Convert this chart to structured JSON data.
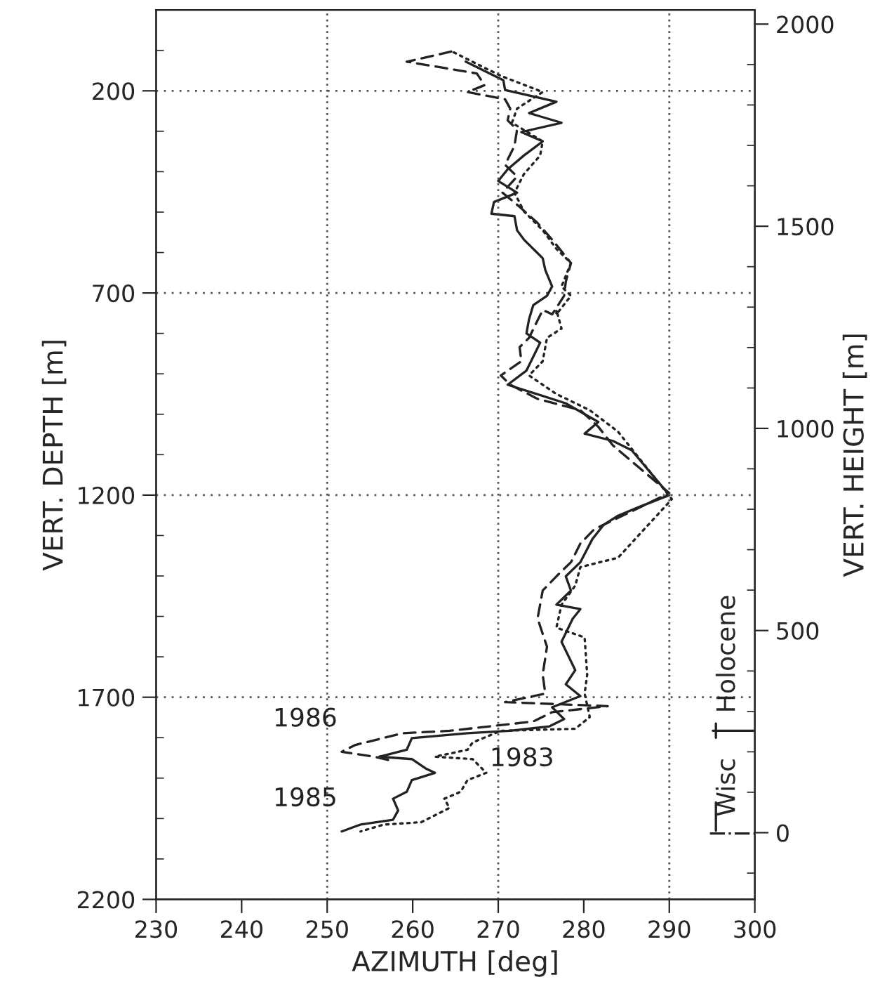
{
  "chart_data": {
    "type": "line",
    "xlabel": "AZIMUTH [deg]",
    "ylabel": "VERT. DEPTH [m]",
    "y2label": "VERT. HEIGHT [m]",
    "xlim": [
      230,
      300
    ],
    "xticks": [
      230,
      240,
      250,
      260,
      270,
      280,
      290,
      300
    ],
    "ylim": [
      2200,
      0
    ],
    "yticks": [
      200,
      700,
      1200,
      1700,
      2200
    ],
    "y2lim": [
      -165,
      2035
    ],
    "y2ticks": [
      0,
      500,
      1000,
      1500,
      2000
    ],
    "grid": "y",
    "legend": false,
    "marker": "none",
    "ref_lines": [
      {
        "axis": "x",
        "value": 250,
        "line_style": "dotted",
        "color": "#555555"
      },
      {
        "axis": "x",
        "value": 270,
        "line_style": "dotted",
        "color": "#555555"
      },
      {
        "axis": "x",
        "value": 290,
        "line_style": "dotted",
        "color": "#555555"
      }
    ],
    "series": [
      {
        "name": "1985",
        "color": "#222222",
        "line_style": "solid",
        "x": [
          266.2,
          270.6,
          270.8,
          276.8,
          273.6,
          277.4,
          272.7,
          275.2,
          273.0,
          271.1,
          270.0,
          272.2,
          269.5,
          269.2,
          271.9,
          272.2,
          273.0,
          275.2,
          275.5,
          276.3,
          275.7,
          274.1,
          273.6,
          273.3,
          274.9,
          273.3,
          271.1,
          277.9,
          281.7,
          280.1,
          283.4,
          285.6,
          290.0,
          286.4,
          284.0,
          282.3,
          281.0,
          279.6,
          277.9,
          278.5,
          276.8,
          279.6,
          278.7,
          277.4,
          279.0,
          277.9,
          279.6,
          276.3,
          277.7,
          276.0,
          271.4,
          266.4,
          259.9,
          259.3,
          256.1,
          259.9,
          261.5,
          262.6,
          259.9,
          259.3,
          257.7,
          258.3,
          257.7,
          253.9,
          251.7
        ],
        "values": [
          128,
          174,
          198,
          227,
          255,
          279,
          302,
          325,
          360,
          394,
          423,
          452,
          475,
          504,
          510,
          545,
          568,
          614,
          643,
          684,
          707,
          730,
          765,
          800,
          823,
          892,
          927,
          973,
          1019,
          1048,
          1066,
          1089,
          1200,
          1230,
          1251,
          1274,
          1309,
          1366,
          1401,
          1436,
          1471,
          1482,
          1506,
          1563,
          1633,
          1668,
          1697,
          1725,
          1754,
          1772,
          1783,
          1789,
          1801,
          1830,
          1847,
          1853,
          1876,
          1887,
          1905,
          1934,
          1951,
          1980,
          2003,
          2015,
          2032
        ]
      },
      {
        "name": "1986",
        "color": "#222222",
        "line_style": "dashed",
        "x": [
          264.5,
          259.3,
          267.5,
          268.4,
          266.4,
          270.8,
          271.4,
          271.1,
          272.2,
          271.9,
          270.8,
          272.2,
          270.5,
          272.5,
          274.6,
          276.3,
          278.5,
          277.9,
          277.7,
          276.3,
          275.2,
          273.6,
          272.5,
          272.7,
          270.3,
          271.4,
          274.6,
          279.6,
          281.7,
          283.4,
          290.0,
          281.2,
          279.6,
          278.5,
          276.8,
          275.2,
          274.6,
          275.7,
          275.2,
          275.5,
          270.8,
          282.8,
          276.3,
          274.1,
          264.3,
          258.8,
          253.3,
          251.7,
          255.5,
          257.7
        ],
        "values": [
          103,
          128,
          157,
          186,
          203,
          221,
          244,
          273,
          296,
          336,
          383,
          412,
          452,
          487,
          527,
          568,
          626,
          672,
          707,
          753,
          742,
          811,
          834,
          869,
          904,
          927,
          962,
          990,
          1031,
          1077,
          1195,
          1285,
          1320,
          1366,
          1401,
          1436,
          1505,
          1575,
          1644,
          1691,
          1712,
          1722,
          1737,
          1760,
          1783,
          1789,
          1818,
          1835,
          1847,
          1858
        ]
      },
      {
        "name": "1983",
        "color": "#222222",
        "line_style": "dotted",
        "x": [
          264.8,
          270.3,
          275.2,
          272.2,
          271.6,
          275.2,
          274.9,
          273.0,
          271.9,
          273.0,
          275.2,
          276.8,
          278.5,
          277.4,
          278.5,
          276.8,
          276.8,
          277.4,
          275.7,
          275.2,
          273.6,
          276.8,
          280.7,
          284.0,
          290.3,
          284.0,
          279.6,
          279.0,
          277.4,
          276.8,
          280.1,
          280.4,
          280.1,
          280.7,
          279.0,
          270.3,
          267.0,
          266.4,
          262.6,
          267.0,
          268.6,
          266.4,
          265.6,
          263.7,
          264.3,
          262.6,
          261.0,
          256.6,
          253.9
        ],
        "values": [
          105,
          163,
          203,
          244,
          279,
          325,
          360,
          406,
          452,
          498,
          545,
          591,
          626,
          684,
          707,
          753,
          742,
          788,
          811,
          869,
          904,
          950,
          990,
          1043,
          1210,
          1355,
          1378,
          1424,
          1471,
          1528,
          1552,
          1644,
          1691,
          1749,
          1778,
          1783,
          1812,
          1830,
          1847,
          1853,
          1887,
          1905,
          1934,
          1951,
          1974,
          1992,
          2009,
          2015,
          2032
        ]
      }
    ],
    "annotations": [
      "Holocene",
      "Wisc"
    ]
  }
}
